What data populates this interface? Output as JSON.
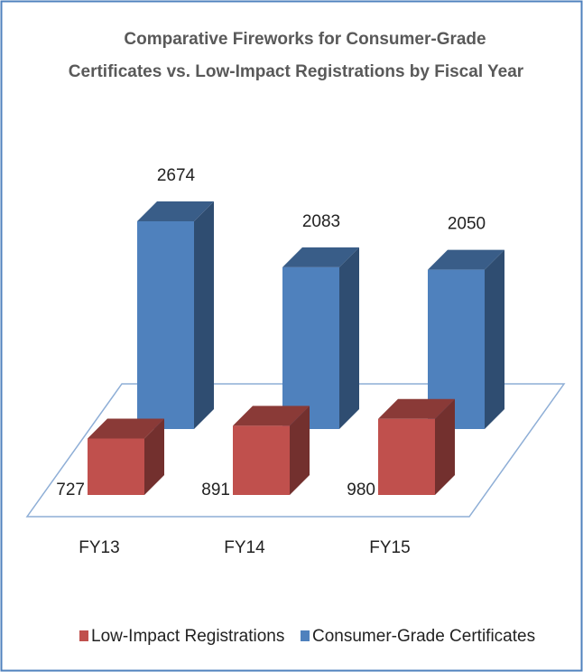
{
  "chart_data": {
    "type": "bar3d",
    "title": [
      "Comparative Fireworks for Consumer-Grade",
      "Certificates vs. Low-Impact Registrations by Fiscal Year"
    ],
    "categories": [
      "FY13",
      "FY14",
      "FY15"
    ],
    "series": [
      {
        "name": "Low-Impact Registrations",
        "color": "#c0504d",
        "values": [
          727,
          891,
          980
        ]
      },
      {
        "name": "Consumer-Grade Certificates",
        "color": "#4f81bd",
        "values": [
          2674,
          2083,
          2050
        ]
      }
    ],
    "legend": "bottom"
  }
}
